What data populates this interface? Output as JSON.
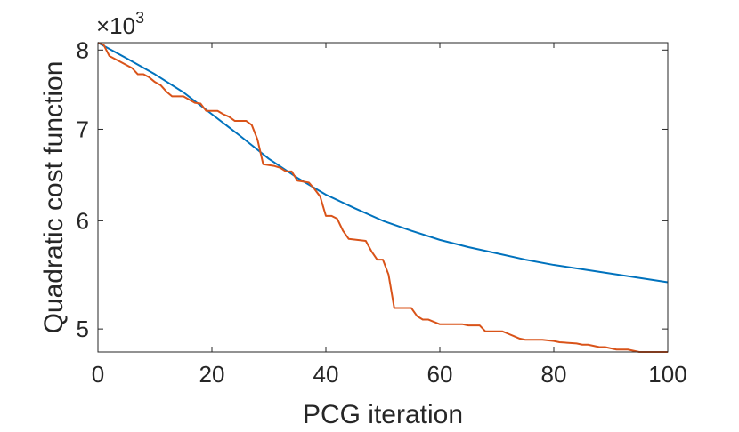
{
  "chart_data": {
    "type": "line",
    "title": "",
    "xlabel": "PCG iteration",
    "ylabel": "Quadratic cost function",
    "y_scale": "log",
    "y_multiplier_base": "×10",
    "y_multiplier_exponent": "3",
    "xlim": [
      0,
      100
    ],
    "ylim": [
      4.81,
      8.1
    ],
    "x_ticks": [
      0,
      20,
      40,
      60,
      80,
      100
    ],
    "x_tick_labels": [
      "0",
      "20",
      "40",
      "60",
      "80",
      "100"
    ],
    "y_ticks": [
      5,
      6,
      7,
      8
    ],
    "y_tick_labels": [
      "5",
      "6",
      "7",
      "8"
    ],
    "grid": false,
    "series": [
      {
        "name": "Blue curve",
        "color": "#0072BD",
        "x": [
          0,
          5,
          10,
          15,
          20,
          25,
          30,
          35,
          40,
          45,
          50,
          55,
          60,
          65,
          70,
          75,
          80,
          85,
          90,
          95,
          100
        ],
        "y": [
          8.1,
          7.89,
          7.68,
          7.45,
          7.18,
          6.92,
          6.66,
          6.45,
          6.27,
          6.13,
          6.0,
          5.9,
          5.81,
          5.74,
          5.68,
          5.62,
          5.57,
          5.53,
          5.49,
          5.45,
          5.41
        ]
      },
      {
        "name": "Orange curve",
        "color": "#D95319",
        "x": [
          0,
          1,
          2,
          4,
          6,
          7,
          8,
          9,
          10,
          11,
          12,
          13,
          15,
          16,
          17,
          18,
          19,
          21,
          22,
          23,
          24,
          25,
          26,
          27,
          28,
          29,
          31,
          32,
          33,
          34,
          35,
          37,
          38,
          39,
          40,
          41,
          42,
          43,
          44,
          47,
          48,
          49,
          50,
          51,
          52,
          53,
          55,
          56,
          57,
          58,
          60,
          61,
          64,
          65,
          67,
          68,
          71,
          72,
          73,
          74,
          75,
          78,
          80,
          81,
          84,
          85,
          86,
          87,
          88,
          89,
          90,
          91,
          92,
          93,
          94,
          95,
          100
        ],
        "y": [
          8.1,
          8.07,
          7.92,
          7.84,
          7.76,
          7.68,
          7.68,
          7.64,
          7.58,
          7.54,
          7.46,
          7.4,
          7.4,
          7.36,
          7.32,
          7.31,
          7.22,
          7.22,
          7.18,
          7.15,
          7.1,
          7.1,
          7.1,
          7.05,
          6.88,
          6.6,
          6.58,
          6.56,
          6.52,
          6.52,
          6.42,
          6.4,
          6.33,
          6.25,
          6.05,
          6.05,
          6.02,
          5.9,
          5.82,
          5.8,
          5.7,
          5.62,
          5.62,
          5.48,
          5.18,
          5.18,
          5.18,
          5.11,
          5.08,
          5.08,
          5.04,
          5.04,
          5.04,
          5.03,
          5.03,
          4.98,
          4.98,
          4.96,
          4.94,
          4.92,
          4.91,
          4.91,
          4.9,
          4.89,
          4.88,
          4.87,
          4.87,
          4.86,
          4.85,
          4.85,
          4.84,
          4.83,
          4.83,
          4.83,
          4.82,
          4.81,
          4.81
        ]
      }
    ]
  }
}
